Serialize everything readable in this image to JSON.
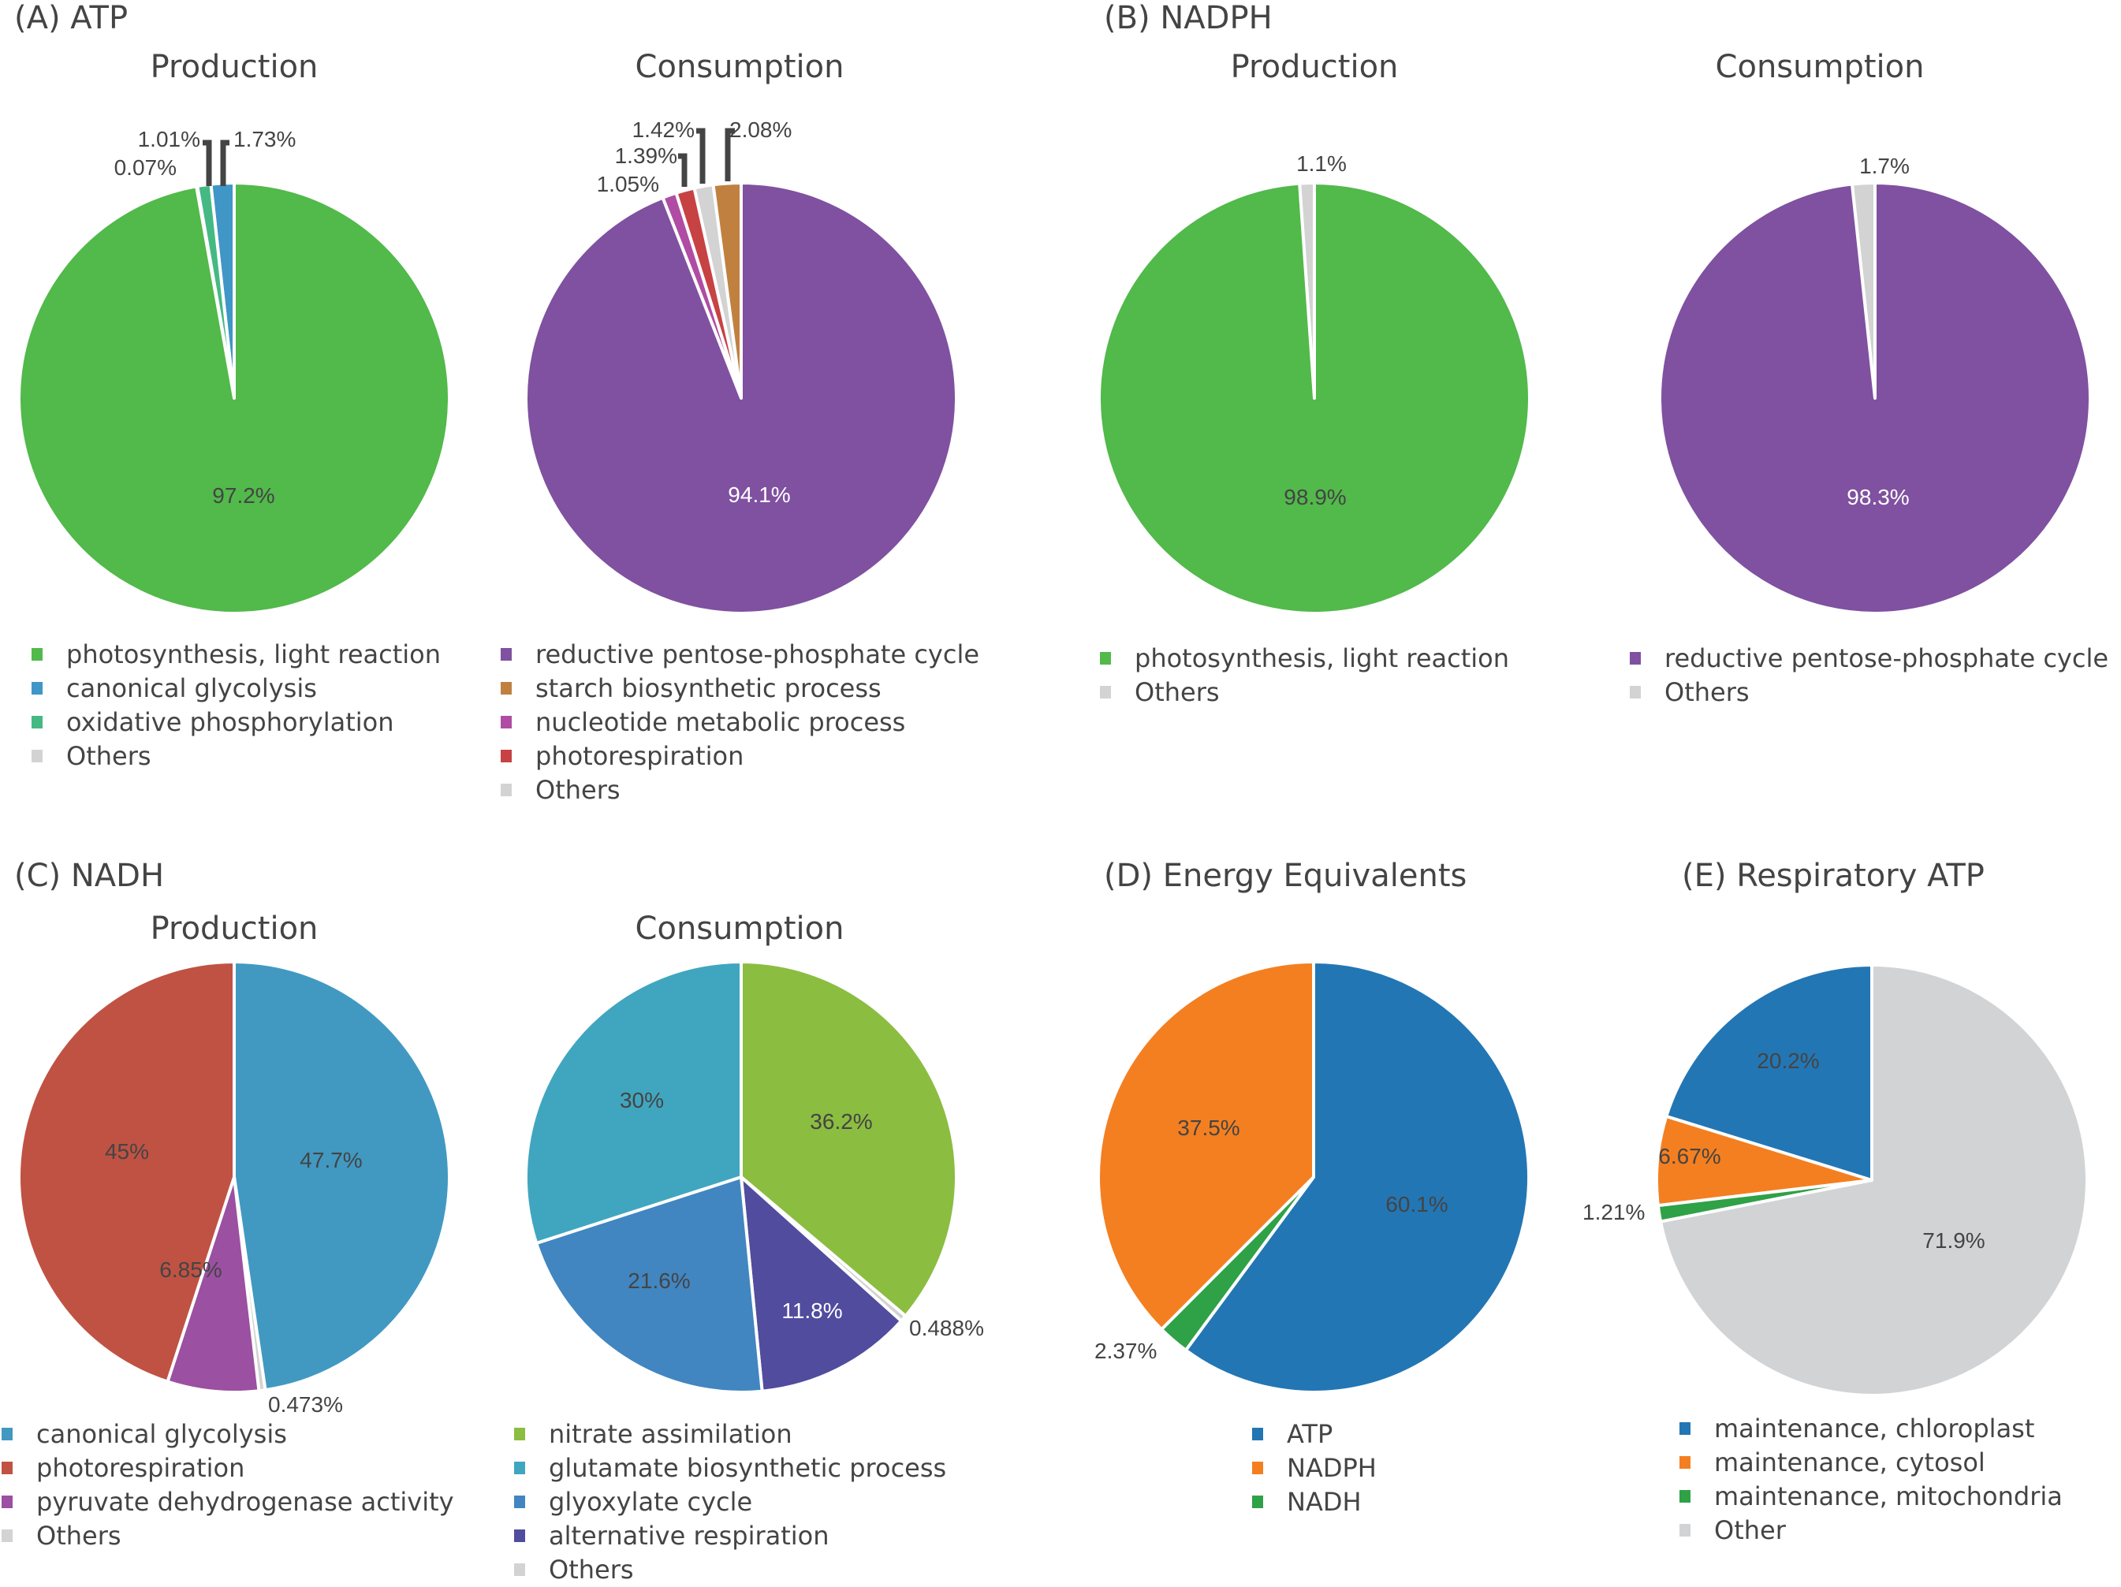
{
  "panels": {
    "A": {
      "title": "(A) ATP",
      "production_title": "Production",
      "consumption_title": "Consumption"
    },
    "B": {
      "title": "(B) NADPH",
      "production_title": "Production",
      "consumption_title": "Consumption"
    },
    "C": {
      "title": "(C) NADH",
      "production_title": "Production",
      "consumption_title": "Consumption"
    },
    "D": {
      "title": "(D) Energy Equivalents"
    },
    "E": {
      "title": "(E) Respiratory ATP"
    }
  },
  "chart_data": [
    {
      "id": "atp-production",
      "type": "pie",
      "title": "(A) ATP — Production",
      "direction": "counterclockwise",
      "slices": [
        {
          "label": "canonical glycolysis",
          "value": 1.73,
          "text": "1.73%",
          "color": "#4096c6",
          "label_pos": "outside-callout"
        },
        {
          "label": "oxidative phosphorylation",
          "value": 1.01,
          "text": "1.01%",
          "color": "#45b984",
          "label_pos": "outside-callout"
        },
        {
          "label": "Others",
          "value": 0.07,
          "text": "0.07%",
          "color": "#d3d3d3",
          "label_pos": "outside"
        },
        {
          "label": "photosynthesis, light reaction",
          "value": 97.2,
          "text": "97.2%",
          "color": "#52b94b",
          "label_pos": "inside"
        }
      ],
      "legend": [
        "photosynthesis, light reaction",
        "canonical glycolysis",
        "oxidative phosphorylation",
        "Others"
      ],
      "legend_colors": [
        "#52b94b",
        "#4096c6",
        "#45b984",
        "#d3d3d3"
      ]
    },
    {
      "id": "atp-consumption",
      "type": "pie",
      "title": "(A) ATP — Consumption",
      "direction": "counterclockwise",
      "slices": [
        {
          "label": "starch biosynthetic process",
          "value": 2.08,
          "text": "2.08%",
          "color": "#c08140",
          "label_pos": "outside-callout"
        },
        {
          "label": "Others",
          "value": 1.42,
          "text": "1.42%",
          "color": "#d3d3d3",
          "label_pos": "outside-callout"
        },
        {
          "label": "photorespiration",
          "value": 1.39,
          "text": "1.39%",
          "color": "#c74243",
          "label_pos": "outside-callout"
        },
        {
          "label": "nucleotide metabolic process",
          "value": 1.05,
          "text": "1.05%",
          "color": "#b04ca3",
          "label_pos": "outside"
        },
        {
          "label": "reductive pentose-phosphate cycle",
          "value": 94.1,
          "text": "94.1%",
          "color": "#7f51a0",
          "label_pos": "inside",
          "label_color": "#ffffff"
        }
      ],
      "legend": [
        "reductive pentose-phosphate cycle",
        "starch biosynthetic process",
        "nucleotide metabolic process",
        "photorespiration",
        "Others"
      ],
      "legend_colors": [
        "#7f51a0",
        "#c08140",
        "#b04ca3",
        "#c74243",
        "#d3d3d3"
      ]
    },
    {
      "id": "nadph-production",
      "type": "pie",
      "title": "(B) NADPH — Production",
      "direction": "counterclockwise",
      "slices": [
        {
          "label": "Others",
          "value": 1.1,
          "text": "1.1%",
          "color": "#d3d3d3",
          "label_pos": "outside"
        },
        {
          "label": "photosynthesis, light reaction",
          "value": 98.9,
          "text": "98.9%",
          "color": "#52b94b",
          "label_pos": "inside"
        }
      ],
      "legend": [
        "photosynthesis, light reaction",
        "Others"
      ],
      "legend_colors": [
        "#52b94b",
        "#d3d3d3"
      ]
    },
    {
      "id": "nadph-consumption",
      "type": "pie",
      "title": "(B) NADPH — Consumption",
      "direction": "counterclockwise",
      "slices": [
        {
          "label": "Others",
          "value": 1.7,
          "text": "1.7%",
          "color": "#d3d3d3",
          "label_pos": "outside"
        },
        {
          "label": "reductive pentose-phosphate cycle",
          "value": 98.3,
          "text": "98.3%",
          "color": "#7f51a0",
          "label_pos": "inside",
          "label_color": "#ffffff"
        }
      ],
      "legend": [
        "reductive pentose-phosphate cycle",
        "Others"
      ],
      "legend_colors": [
        "#7f51a0",
        "#d3d3d3"
      ]
    },
    {
      "id": "nadh-production",
      "type": "pie",
      "title": "(C) NADH — Production",
      "direction": "clockwise",
      "slices": [
        {
          "label": "canonical glycolysis",
          "value": 47.7,
          "text": "47.7%",
          "color": "#4199c2",
          "label_pos": "inside"
        },
        {
          "label": "Others",
          "value": 0.473,
          "text": "0.473%",
          "color": "#d3d3d3",
          "label_pos": "outside"
        },
        {
          "label": "pyruvate dehydrogenase activity",
          "value": 6.85,
          "text": "6.85%",
          "color": "#9b50a1",
          "label_pos": "inside"
        },
        {
          "label": "photorespiration",
          "value": 45.0,
          "text": "45%",
          "color": "#c05243",
          "label_pos": "inside"
        }
      ],
      "legend": [
        "canonical glycolysis",
        "photorespiration",
        "pyruvate dehydrogenase activity",
        "Others"
      ],
      "legend_colors": [
        "#4199c2",
        "#c05243",
        "#9b50a1",
        "#d3d3d3"
      ]
    },
    {
      "id": "nadh-consumption",
      "type": "pie",
      "title": "(C) NADH — Consumption",
      "direction": "clockwise",
      "slices": [
        {
          "label": "nitrate assimilation",
          "value": 36.2,
          "text": "36.2%",
          "color": "#8bbd41",
          "label_pos": "inside"
        },
        {
          "label": "Others",
          "value": 0.488,
          "text": "0.488%",
          "color": "#d3d3d3",
          "label_pos": "outside"
        },
        {
          "label": "alternative respiration",
          "value": 11.8,
          "text": "11.8%",
          "color": "#514c9e",
          "label_pos": "inside",
          "label_color": "#ffffff"
        },
        {
          "label": "glyoxylate cycle",
          "value": 21.6,
          "text": "21.6%",
          "color": "#4186c0",
          "label_pos": "inside"
        },
        {
          "label": "glutamate biosynthetic process",
          "value": 30.0,
          "text": "30%",
          "color": "#40a6bf",
          "label_pos": "inside"
        }
      ],
      "legend": [
        "nitrate assimilation",
        "glutamate biosynthetic process",
        "glyoxylate cycle",
        "alternative respiration",
        "Others"
      ],
      "legend_colors": [
        "#8bbd41",
        "#40a6bf",
        "#4186c0",
        "#514c9e",
        "#d3d3d3"
      ]
    },
    {
      "id": "energy-equivalents",
      "type": "pie",
      "title": "(D) Energy Equivalents",
      "direction": "clockwise",
      "slices": [
        {
          "label": "ATP",
          "value": 60.1,
          "text": "60.1%",
          "color": "#2376b4",
          "label_pos": "inside"
        },
        {
          "label": "NADH",
          "value": 2.37,
          "text": "2.37%",
          "color": "#2fa147",
          "label_pos": "outside"
        },
        {
          "label": "NADPH",
          "value": 37.5,
          "text": "37.5%",
          "color": "#f47f20",
          "label_pos": "inside"
        }
      ],
      "legend": [
        "ATP",
        "NADPH",
        "NADH"
      ],
      "legend_colors": [
        "#2376b4",
        "#f47f20",
        "#2fa147"
      ]
    },
    {
      "id": "respiratory-atp",
      "type": "pie",
      "title": "(E) Respiratory ATP",
      "direction": "counterclockwise",
      "slices": [
        {
          "label": "maintenance, chloroplast",
          "value": 20.2,
          "text": "20.2%",
          "color": "#2376b4",
          "label_pos": "inside"
        },
        {
          "label": "maintenance, cytosol",
          "value": 6.67,
          "text": "6.67%",
          "color": "#f47f20",
          "label_pos": "inside"
        },
        {
          "label": "maintenance, mitochondria",
          "value": 1.21,
          "text": "1.21%",
          "color": "#2fa147",
          "label_pos": "outside"
        },
        {
          "label": "Other",
          "value": 71.9,
          "text": "71.9%",
          "color": "#d2d3d5",
          "label_pos": "inside"
        }
      ],
      "legend": [
        "maintenance, chloroplast",
        "maintenance, cytosol",
        "maintenance, mitochondria",
        "Other"
      ],
      "legend_colors": [
        "#2376b4",
        "#f47f20",
        "#2fa147",
        "#d2d3d5"
      ]
    }
  ]
}
